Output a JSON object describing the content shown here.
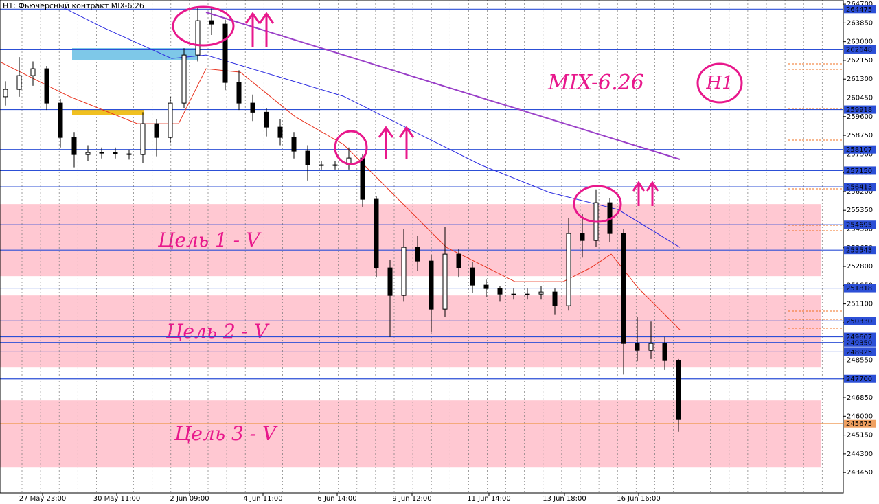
{
  "chart_data": {
    "type": "candlestick",
    "title": "H1: Фьючерсный контракт MIX-6.26",
    "annotations": [
      "MIX-6.26",
      "H1"
    ],
    "ylim": [
      242520,
      264890
    ],
    "yticks": [
      264700,
      263850,
      263000,
      262150,
      261300,
      260450,
      259600,
      258750,
      257900,
      257050,
      256200,
      255350,
      254500,
      253650,
      252800,
      251950,
      251100,
      250250,
      249400,
      248550,
      247700,
      246850,
      246000,
      245150,
      244300,
      243450
    ],
    "xticks": [
      {
        "value": 2.7,
        "label": "27 May 23:00"
      },
      {
        "value": 8.1,
        "label": "30 May 11:00"
      },
      {
        "value": 13.4,
        "label": "2 Jun 09:00"
      },
      {
        "value": 18.75,
        "label": "4 Jun 11:00"
      },
      {
        "value": 24.15,
        "label": "6 Jun 14:00"
      },
      {
        "value": 29.6,
        "label": "9 Jun 12:00"
      },
      {
        "value": 35.2,
        "label": "11 Jun 14:00"
      },
      {
        "value": 40.7,
        "label": "13 Jun 18:00"
      },
      {
        "value": 46.1,
        "label": "16 Jun 16:00"
      }
    ],
    "candle_color": "#000000",
    "candles": [
      [
        260500,
        261200,
        260100,
        260836
      ],
      [
        260836,
        262300,
        260500,
        261459
      ],
      [
        261459,
        262100,
        261000,
        261771
      ],
      [
        261771,
        261900,
        259900,
        260213
      ],
      [
        260213,
        260400,
        258200,
        258655
      ],
      [
        258655,
        258900,
        257300,
        257876
      ],
      [
        257876,
        258300,
        257600,
        257969
      ],
      [
        257969,
        258200,
        257700,
        257969
      ],
      [
        257969,
        258200,
        257700,
        257907
      ],
      [
        257907,
        258100,
        257650,
        257876
      ],
      [
        257876,
        259800,
        257500,
        259278
      ],
      [
        259278,
        259500,
        257800,
        258655
      ],
      [
        258655,
        260500,
        258400,
        260213
      ],
      [
        260213,
        262700,
        260000,
        262394
      ],
      [
        262394,
        264600,
        262100,
        263952
      ],
      [
        263952,
        264500,
        263300,
        263796
      ],
      [
        263796,
        264000,
        260800,
        261148
      ],
      [
        261148,
        261700,
        259900,
        260213
      ],
      [
        260213,
        260600,
        259400,
        259800
      ],
      [
        259800,
        260000,
        258700,
        259122
      ],
      [
        259122,
        259500,
        258300,
        258655
      ],
      [
        258655,
        258900,
        257700,
        258032
      ],
      [
        258032,
        258300,
        256700,
        257409
      ],
      [
        257409,
        257600,
        257200,
        257409
      ],
      [
        257409,
        257600,
        257200,
        257409
      ],
      [
        257409,
        258200,
        257200,
        257720
      ],
      [
        257720,
        257900,
        255500,
        255851
      ],
      [
        255851,
        256000,
        252300,
        252735
      ],
      [
        252735,
        253100,
        249600,
        251488
      ],
      [
        251488,
        254500,
        251200,
        253669
      ],
      [
        253669,
        254200,
        252600,
        253046
      ],
      [
        253046,
        253300,
        249800,
        250865
      ],
      [
        250865,
        254600,
        250500,
        253358
      ],
      [
        253358,
        253600,
        252300,
        252735
      ],
      [
        252735,
        253000,
        251600,
        251956
      ],
      [
        251956,
        252200,
        251400,
        251800
      ],
      [
        251800,
        251900,
        251200,
        251550
      ],
      [
        251550,
        251800,
        251300,
        251550
      ],
      [
        251550,
        251800,
        251300,
        251550
      ],
      [
        251550,
        251900,
        251300,
        251644
      ],
      [
        251644,
        251800,
        250600,
        251021
      ],
      [
        251021,
        255000,
        250800,
        254293
      ],
      [
        254293,
        255200,
        253200,
        253981
      ],
      [
        253981,
        256300,
        253700,
        255695
      ],
      [
        255695,
        255900,
        253900,
        254293
      ],
      [
        254293,
        254500,
        247900,
        249307
      ],
      [
        249307,
        250500,
        248500,
        248995
      ],
      [
        248995,
        250300,
        248600,
        249307
      ],
      [
        249307,
        249600,
        248100,
        248528
      ],
      [
        248528,
        248600,
        245300,
        245879
      ]
    ],
    "series": [
      {
        "name": "MA fast",
        "color": "#e8321e",
        "x": [
          -0.4,
          4.6,
          9.6,
          12.6,
          14.6,
          17.1,
          21.1,
          24.6,
          27.1,
          32.1,
          37.1,
          40.6,
          42.6,
          44.1,
          46.1,
          49.1
        ],
        "values": [
          262083,
          260525,
          259278,
          259278,
          261771,
          261615,
          259590,
          258344,
          256786,
          253669,
          252111,
          252111,
          252735,
          253358,
          251800,
          249930
        ]
      },
      {
        "name": "MA slow",
        "color": "#2a2ae0",
        "x": [
          4.1,
          7.1,
          12.1,
          14.6,
          19.6,
          24.6,
          29.6,
          34.6,
          39.6,
          44.6,
          49.1
        ],
        "values": [
          264575,
          263641,
          262238,
          262394,
          261459,
          260525,
          258967,
          257409,
          256162,
          255383,
          253669
        ]
      }
    ],
    "levels": [
      264475,
      262648,
      259918,
      258107,
      257150,
      256413,
      254695,
      253543,
      251818,
      250330,
      249607,
      249350,
      248925,
      247700
    ],
    "level_color": "#2c4fd6",
    "current_price": 245675,
    "current_price_color": "#f0a060",
    "zones": [
      {
        "label": "Цель 1 - V",
        "top": 255632,
        "bottom": 252360
      },
      {
        "label": "Цель 2 - V",
        "top": 251487,
        "bottom": 248215
      },
      {
        "label": "Цель 3 - V",
        "top": 246720,
        "bottom": 243697
      }
    ],
    "zone_color": "#ffc8d2"
  }
}
